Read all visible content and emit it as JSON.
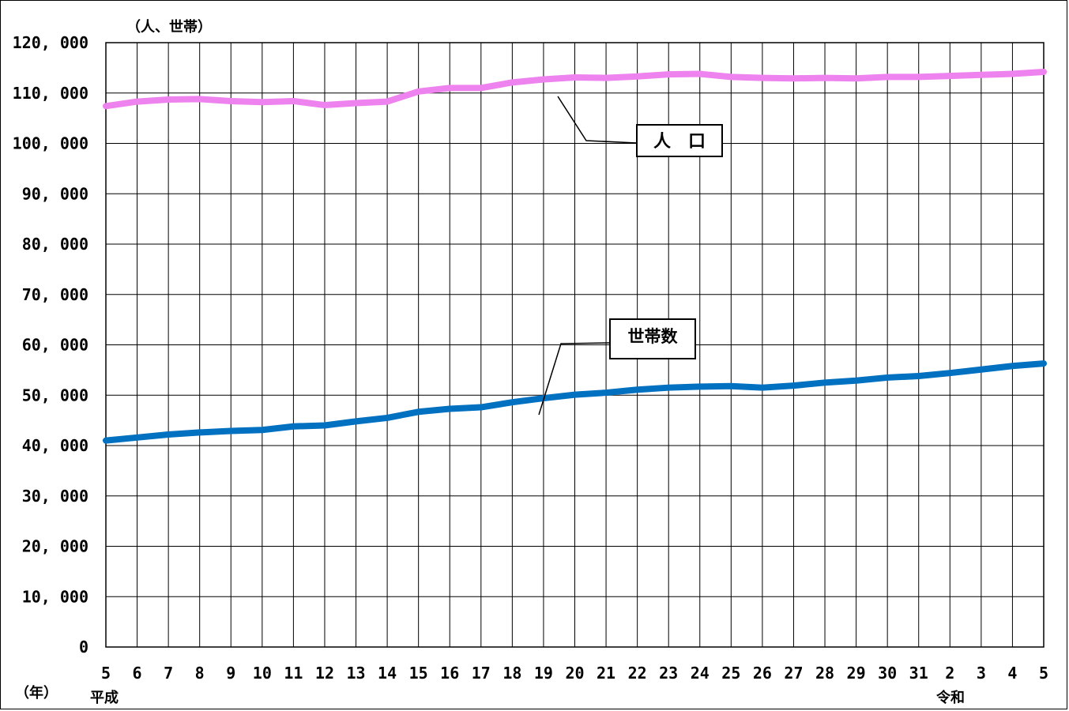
{
  "chart_data": {
    "type": "line",
    "yunit_label": "（人、世帯）",
    "xunit_label": "（年）",
    "era_labels": [
      "平成",
      "令和"
    ],
    "ylim": [
      0,
      120000
    ],
    "yticks": [
      0,
      10000,
      20000,
      30000,
      40000,
      50000,
      60000,
      70000,
      80000,
      90000,
      100000,
      110000,
      120000
    ],
    "ytick_labels": [
      "0",
      "10, 000",
      "20, 000",
      "30, 000",
      "40, 000",
      "50, 000",
      "60, 000",
      "70, 000",
      "80, 000",
      "90, 000",
      "100, 000",
      "110, 000",
      "120, 000"
    ],
    "categories": [
      "5",
      "6",
      "7",
      "8",
      "9",
      "10",
      "11",
      "12",
      "13",
      "14",
      "15",
      "16",
      "17",
      "18",
      "19",
      "20",
      "21",
      "22",
      "23",
      "24",
      "25",
      "26",
      "27",
      "28",
      "29",
      "30",
      "31",
      "2",
      "3",
      "4",
      "5"
    ],
    "grid": true,
    "series": [
      {
        "name": "人　口",
        "color": "#ee82ee",
        "values": [
          107400,
          108300,
          108700,
          108800,
          108400,
          108200,
          108400,
          107600,
          108000,
          108300,
          110300,
          111000,
          111000,
          112100,
          112700,
          113100,
          113000,
          113300,
          113700,
          113800,
          113200,
          113000,
          112900,
          113000,
          112900,
          113200,
          113200,
          113400,
          113600,
          113800,
          114200
        ]
      },
      {
        "name": "世帯数",
        "color": "#0070c0",
        "values": [
          41000,
          41600,
          42200,
          42600,
          42900,
          43100,
          43800,
          44000,
          44800,
          45500,
          46700,
          47300,
          47600,
          48600,
          49400,
          50100,
          50500,
          51100,
          51500,
          51700,
          51800,
          51500,
          51900,
          52500,
          52900,
          53500,
          53800,
          54400,
          55100,
          55800,
          56300
        ]
      }
    ]
  }
}
